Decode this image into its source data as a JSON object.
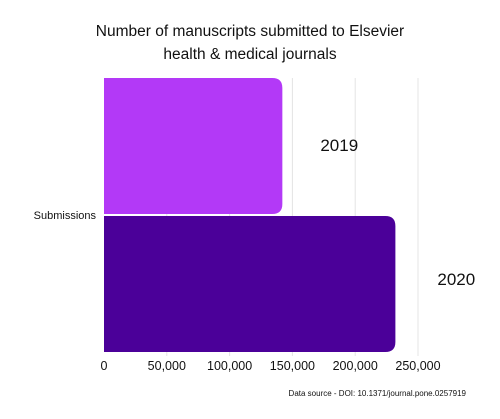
{
  "chart_data": {
    "type": "bar",
    "orientation": "horizontal",
    "title_lines": [
      "Number of manuscripts submitted to Elsevier",
      "health & medical journals"
    ],
    "category_label": "Submissions",
    "xlim": [
      0,
      250000
    ],
    "x_ticks": [
      {
        "value": 0,
        "label": "0"
      },
      {
        "value": 50000,
        "label": "50,000"
      },
      {
        "value": 100000,
        "label": "100,000"
      },
      {
        "value": 150000,
        "label": "150,000"
      },
      {
        "value": 200000,
        "label": "200,000"
      },
      {
        "value": 250000,
        "label": "250,000"
      }
    ],
    "series": [
      {
        "name": "2019",
        "value": 142000,
        "color": "#b339f7"
      },
      {
        "name": "2020",
        "value": 232000,
        "color": "#4b0099"
      }
    ],
    "grid": "vertical",
    "gridline_color": "#e4e4e4"
  },
  "source_note": "Data source - DOI: 10.1371/journal.pone.0257919"
}
